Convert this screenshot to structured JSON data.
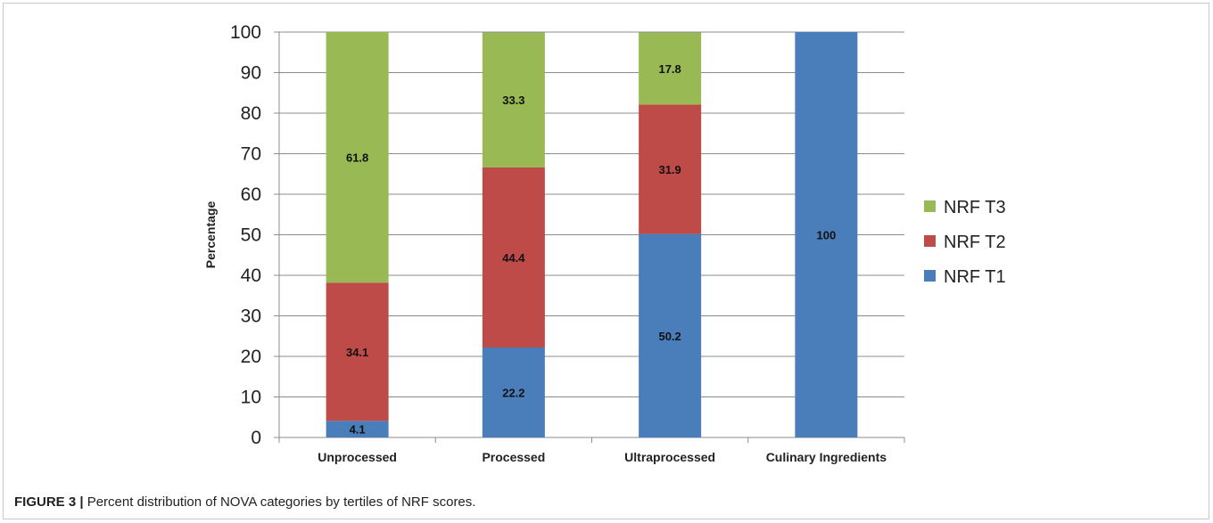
{
  "chart_data": {
    "type": "bar",
    "stacked": true,
    "categories": [
      "Unprocessed",
      "Processed",
      "Ultraprocessed",
      "Culinary Ingredients"
    ],
    "series": [
      {
        "name": "NRF T1",
        "values": [
          4.1,
          22.2,
          50.2,
          100
        ],
        "labels": [
          "4.1",
          "22.2",
          "50.2",
          "100"
        ],
        "color": "#4a7ebb"
      },
      {
        "name": "NRF T2",
        "values": [
          34.1,
          44.4,
          31.9,
          0
        ],
        "labels": [
          "34.1",
          "44.4",
          "31.9",
          ""
        ],
        "color": "#be4b48"
      },
      {
        "name": "NRF T3",
        "values": [
          61.8,
          33.3,
          17.8,
          0
        ],
        "labels": [
          "61.8",
          "33.3",
          "17.8",
          ""
        ],
        "color": "#98b954"
      }
    ],
    "legend_order": [
      "NRF T3",
      "NRF T2",
      "NRF T1"
    ],
    "title": "",
    "xlabel": "",
    "ylabel": "Percentage",
    "ylim": [
      0,
      100
    ],
    "yticks": [
      "0",
      "10",
      "20",
      "30",
      "40",
      "50",
      "60",
      "70",
      "80",
      "90",
      "100"
    ],
    "grid": true,
    "legend": "right"
  },
  "caption": {
    "label": "FIGURE 3 |",
    "text": " Percent distribution of NOVA categories by tertiles of NRF scores."
  }
}
